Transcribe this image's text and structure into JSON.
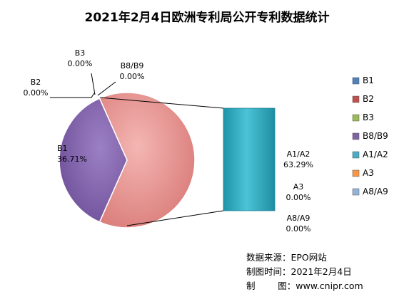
{
  "chart_data": {
    "type": "pie",
    "subtype": "pie-of-bar",
    "title": "2021年2月4日欧洲专利局公开专利数据统计",
    "slices": [
      {
        "name": "B1",
        "value": 36.71,
        "label": "36.71%",
        "color": "#7F5FA8"
      },
      {
        "name": "B2",
        "value": 0.0,
        "label": "0.00%",
        "color": "#C0504D"
      },
      {
        "name": "B3",
        "value": 0.0,
        "label": "0.00%",
        "color": "#9BBB59"
      },
      {
        "name": "B8/B9",
        "value": 0.0,
        "label": "0.00%",
        "color": "#8064A2"
      },
      {
        "name": "A1/A2",
        "value": 63.29,
        "label": "63.29%",
        "color": "#E48A8A"
      }
    ],
    "bar_breakdown": [
      {
        "name": "A1/A2",
        "value": 63.29,
        "label": "63.29%",
        "color": "#2EA8BE"
      },
      {
        "name": "A3",
        "value": 0.0,
        "label": "0.00%",
        "color": "#F79646"
      },
      {
        "name": "A8/A9",
        "value": 0.0,
        "label": "0.00%",
        "color": "#95B3D7"
      }
    ],
    "legend": {
      "position": "right",
      "items": [
        {
          "name": "B1",
          "color": "#4F81BD"
        },
        {
          "name": "B2",
          "color": "#C0504D"
        },
        {
          "name": "B3",
          "color": "#9BBB59"
        },
        {
          "name": "B8/B9",
          "color": "#8064A2"
        },
        {
          "name": "A1/A2",
          "color": "#4BACC6"
        },
        {
          "name": "A3",
          "color": "#F79646"
        },
        {
          "name": "A8/A9",
          "color": "#95B3D7"
        }
      ]
    }
  },
  "source": {
    "line1": "数据来源：EPO网站",
    "line2": "制图时间：2021年2月4日",
    "line3": "制        图：www.cnipr.com"
  }
}
